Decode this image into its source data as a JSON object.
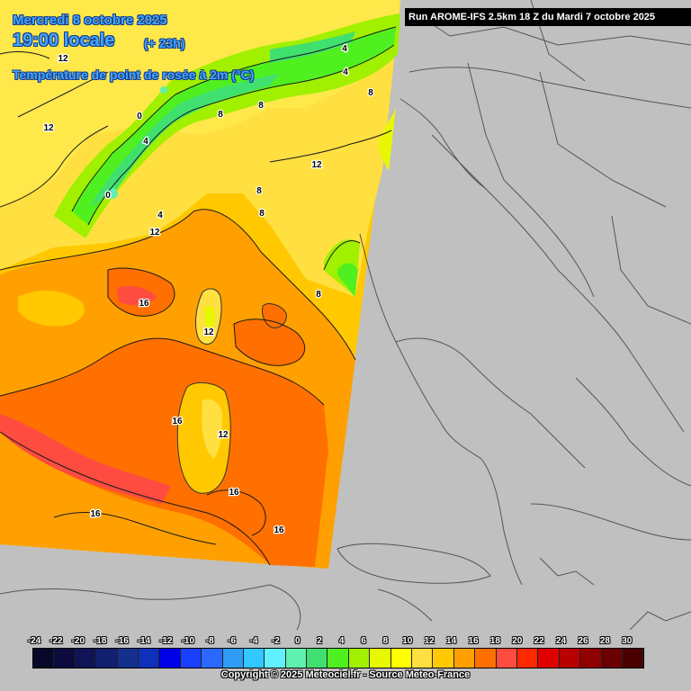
{
  "header": {
    "date": "Mercredi 8 octobre 2025",
    "time": "19:00 locale",
    "offset": "(+ 23h)",
    "parameter": "Température de point de rosée à 2m (°C)"
  },
  "run_info": "Run AROME-IFS 2.5km 18 Z du Mardi 7 octobre 2025",
  "copyright": "Copyright © 2025 Meteociel.fr - Source Meteo-France",
  "legend": {
    "ticks": [
      "-24",
      "-22",
      "-20",
      "-18",
      "-16",
      "-14",
      "-12",
      "-10",
      "-8",
      "-6",
      "-4",
      "-2",
      "0",
      "2",
      "4",
      "6",
      "8",
      "10",
      "12",
      "14",
      "16",
      "18",
      "20",
      "22",
      "24",
      "26",
      "28",
      "30"
    ],
    "colors": [
      "#07072a",
      "#0b0b3e",
      "#0e1456",
      "#112070",
      "#14308c",
      "#0f30b8",
      "#0000e6",
      "#1a40ff",
      "#2a68ff",
      "#2e9cf4",
      "#30c8ff",
      "#60f0ff",
      "#60f0b0",
      "#40e070",
      "#50f020",
      "#a0f000",
      "#e8f800",
      "#ffff00",
      "#ffe040",
      "#ffc800",
      "#ffa000",
      "#ff7000",
      "#ff4c40",
      "#ff2800",
      "#e00000",
      "#b80000",
      "#900000",
      "#6a0000",
      "#4a0000"
    ]
  },
  "contour_labels": [
    {
      "text": "12"
    },
    {
      "text": "12"
    },
    {
      "text": "4"
    },
    {
      "text": "0"
    },
    {
      "text": "4"
    },
    {
      "text": "8"
    },
    {
      "text": "8"
    },
    {
      "text": "4"
    },
    {
      "text": "8"
    },
    {
      "text": "12"
    },
    {
      "text": "0"
    },
    {
      "text": "12"
    },
    {
      "text": "8"
    },
    {
      "text": "8"
    },
    {
      "text": "8"
    },
    {
      "text": "16"
    },
    {
      "text": "12"
    },
    {
      "text": "16"
    },
    {
      "text": "12"
    },
    {
      "text": "16"
    },
    {
      "text": "16"
    },
    {
      "text": "16"
    },
    {
      "text": "4"
    }
  ]
}
